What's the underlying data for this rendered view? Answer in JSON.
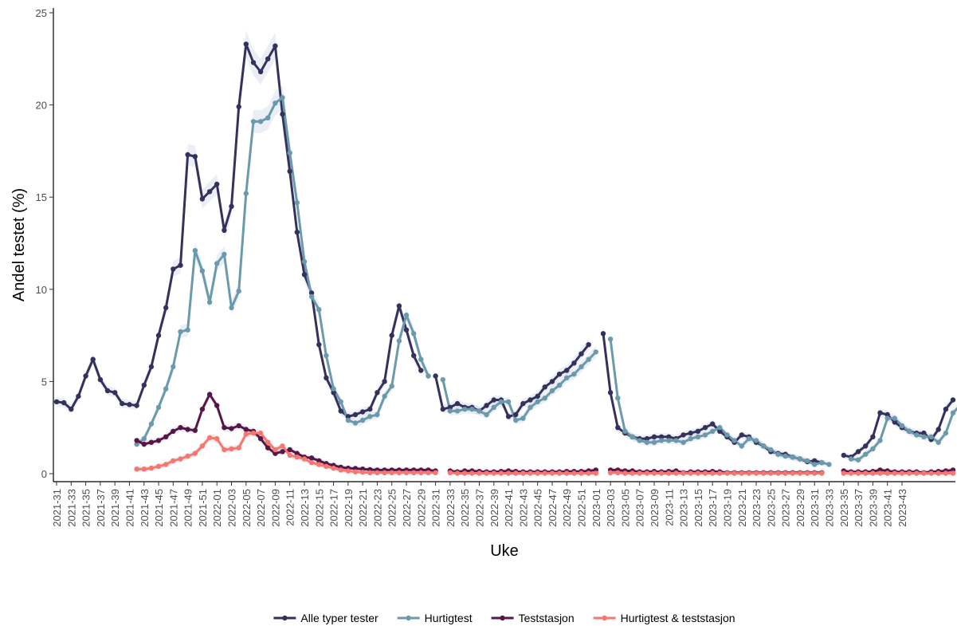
{
  "chart_data": {
    "type": "line",
    "xlabel": "Uke",
    "ylabel": "Andel testet (%)",
    "ylim": [
      0,
      25
    ],
    "yticks": [
      0,
      5,
      10,
      15,
      20,
      25
    ],
    "xticks": [
      "2021-31",
      "2021-33",
      "2021-35",
      "2021-37",
      "2021-39",
      "2021-41",
      "2021-43",
      "2021-45",
      "2021-47",
      "2021-49",
      "2021-51",
      "2022-01",
      "2022-03",
      "2022-05",
      "2022-07",
      "2022-09",
      "2022-11",
      "2022-13",
      "2022-15",
      "2022-17",
      "2022-19",
      "2022-21",
      "2022-23",
      "2022-25",
      "2022-27",
      "2022-29",
      "2022-31",
      "2022-33",
      "2022-35",
      "2022-37",
      "2022-39",
      "2022-41",
      "2022-43",
      "2022-45",
      "2022-47",
      "2022-49",
      "2022-51",
      "2023-01",
      "2023-03",
      "2023-05",
      "2023-07",
      "2023-09",
      "2023-11",
      "2023-13",
      "2023-15",
      "2023-17",
      "2023-19",
      "2023-21",
      "2023-23",
      "2023-25",
      "2023-27",
      "2023-29",
      "2023-31",
      "2023-33",
      "2023-35",
      "2023-37",
      "2023-39",
      "2023-41",
      "2023-43"
    ],
    "grid": false,
    "legend_position": "bottom",
    "confidence_band": true,
    "series": [
      {
        "name": "Alle typer tester",
        "color": "#34325c",
        "values": [
          3.9,
          3.85,
          3.5,
          4.2,
          5.3,
          6.2,
          5.1,
          4.5,
          4.4,
          3.8,
          3.75,
          3.7,
          4.8,
          5.8,
          7.5,
          9.0,
          11.1,
          11.3,
          17.3,
          17.2,
          14.9,
          15.3,
          15.7,
          13.2,
          14.5,
          19.9,
          23.3,
          22.3,
          21.8,
          22.5,
          23.2,
          19.5,
          16.4,
          13.1,
          10.8,
          9.8,
          7.0,
          5.2,
          4.4,
          3.4,
          3.1,
          3.2,
          3.35,
          3.5,
          4.4,
          5.0,
          7.5,
          9.1,
          7.8,
          6.4,
          5.6,
          null,
          5.3,
          3.5,
          3.6,
          3.8,
          3.6,
          3.6,
          3.4,
          3.7,
          4.0,
          4.0,
          3.1,
          3.2,
          3.8,
          4.0,
          4.2,
          4.7,
          5.0,
          5.4,
          5.6,
          6.0,
          6.5,
          7.0,
          null,
          7.6,
          4.4,
          2.5,
          2.2,
          2.0,
          1.9,
          1.9,
          2.0,
          2.0,
          2.0,
          1.9,
          2.1,
          2.2,
          2.3,
          2.5,
          2.7,
          2.3,
          2.0,
          1.7,
          2.1,
          2.0,
          1.7,
          1.5,
          1.2,
          1.1,
          1.05,
          0.9,
          0.8,
          0.65,
          0.7,
          0.6,
          null,
          null,
          1.0,
          0.9,
          1.2,
          1.5,
          2.0,
          3.3,
          3.2,
          2.8,
          2.5,
          2.3,
          2.2,
          2.2,
          1.85,
          2.4,
          3.5,
          4.0
        ]
      },
      {
        "name": "Hurtigtest",
        "color": "#6a9aac",
        "values": [
          null,
          null,
          null,
          null,
          null,
          null,
          null,
          null,
          null,
          null,
          null,
          1.6,
          1.9,
          2.7,
          3.6,
          4.6,
          5.8,
          7.7,
          7.8,
          12.1,
          11.0,
          9.3,
          11.4,
          11.9,
          9.0,
          9.9,
          15.2,
          19.1,
          19.1,
          19.3,
          20.1,
          20.4,
          17.4,
          14.7,
          11.5,
          9.6,
          8.9,
          6.4,
          4.6,
          3.9,
          2.9,
          2.75,
          2.9,
          3.1,
          3.2,
          4.2,
          4.75,
          7.2,
          8.6,
          7.6,
          6.2,
          5.3,
          null,
          5.1,
          3.4,
          3.4,
          3.5,
          3.5,
          3.4,
          3.2,
          3.6,
          3.9,
          3.9,
          2.9,
          3.0,
          3.6,
          3.9,
          4.1,
          4.5,
          4.8,
          5.2,
          5.4,
          5.8,
          6.2,
          6.6,
          null,
          7.3,
          4.1,
          2.3,
          2.0,
          1.8,
          1.7,
          1.7,
          1.8,
          1.8,
          1.8,
          1.7,
          1.9,
          2.0,
          2.1,
          2.3,
          2.5,
          2.1,
          1.8,
          1.5,
          1.9,
          1.8,
          1.5,
          1.3,
          1.05,
          0.95,
          0.9,
          0.8,
          0.7,
          0.5,
          0.6,
          0.5,
          null,
          null,
          0.8,
          0.75,
          1.05,
          1.35,
          1.8,
          3.0,
          3.0,
          2.6,
          2.3,
          2.1,
          2.0,
          2.0,
          1.7,
          2.2,
          3.3,
          3.7
        ]
      },
      {
        "name": "Teststasjon",
        "color": "#561746",
        "values": [
          null,
          null,
          null,
          null,
          null,
          null,
          null,
          null,
          null,
          null,
          null,
          1.8,
          1.6,
          1.7,
          1.8,
          2.0,
          2.3,
          2.5,
          2.4,
          2.35,
          3.5,
          4.3,
          3.7,
          2.5,
          2.45,
          2.6,
          2.4,
          2.3,
          1.9,
          1.4,
          1.1,
          1.2,
          1.3,
          1.1,
          0.9,
          0.85,
          0.7,
          0.55,
          0.45,
          0.35,
          0.3,
          0.28,
          0.25,
          0.22,
          0.2,
          0.2,
          0.2,
          0.2,
          0.2,
          0.2,
          0.2,
          0.2,
          0.15,
          null,
          0.15,
          0.1,
          0.15,
          0.15,
          0.12,
          0.1,
          0.1,
          0.12,
          0.15,
          0.12,
          0.1,
          0.1,
          0.1,
          0.1,
          0.1,
          0.1,
          0.12,
          0.12,
          0.12,
          0.15,
          0.2,
          null,
          0.2,
          0.2,
          0.15,
          0.15,
          0.1,
          0.1,
          0.12,
          0.1,
          0.12,
          0.15,
          0.05,
          0.1,
          0.1,
          0.1,
          0.12,
          0.1,
          0.05,
          0.05,
          0.05,
          0.05,
          0.05,
          0.05,
          0.05,
          0.05,
          0.05,
          0.05,
          0.05,
          0.05,
          0.05,
          0.05,
          null,
          null,
          0.15,
          0.1,
          0.1,
          0.1,
          0.12,
          0.2,
          0.15,
          0.1,
          0.1,
          0.1,
          0.1,
          0.05,
          0.1,
          0.12,
          0.15,
          0.2
        ]
      },
      {
        "name": "Hurtigtest & teststasjon",
        "color": "#f7766d",
        "values": [
          null,
          null,
          null,
          null,
          null,
          null,
          null,
          null,
          null,
          null,
          null,
          0.25,
          0.25,
          0.3,
          0.4,
          0.5,
          0.7,
          0.8,
          0.95,
          1.1,
          1.5,
          1.95,
          1.9,
          1.3,
          1.35,
          1.4,
          2.15,
          2.2,
          2.2,
          1.7,
          1.3,
          1.5,
          1.0,
          0.9,
          0.8,
          0.6,
          0.5,
          0.4,
          0.3,
          0.2,
          0.15,
          0.1,
          0.08,
          0.05,
          0.05,
          0.05,
          0.05,
          0.05,
          0.05,
          0.05,
          0.05,
          0.05,
          0.05,
          null,
          0.05,
          0.02,
          0.02,
          0.02,
          0.02,
          0.02,
          0.02,
          0.02,
          0.02,
          0.02,
          0.02,
          0.02,
          0.02,
          0.02,
          0.02,
          0.02,
          0.02,
          0.02,
          0.02,
          0.02,
          0.02,
          null,
          0.05,
          0.05,
          0.02,
          0.02,
          0.02,
          0.02,
          0.02,
          0.02,
          0.02,
          0.02,
          0.02,
          0.02,
          0.02,
          0.02,
          0.02,
          0.02,
          0.02,
          0.02,
          0.02,
          0.02,
          0.02,
          0.02,
          0.02,
          0.02,
          0.02,
          0.02,
          0.02,
          0.02,
          0.02,
          0.02,
          null,
          null,
          0.02,
          0.02,
          0.02,
          0.02,
          0.02,
          0.02,
          0.02,
          0.02,
          0.02,
          0.02,
          0.02,
          0.02,
          0.02,
          0.02,
          0.02,
          0.02
        ]
      }
    ]
  }
}
